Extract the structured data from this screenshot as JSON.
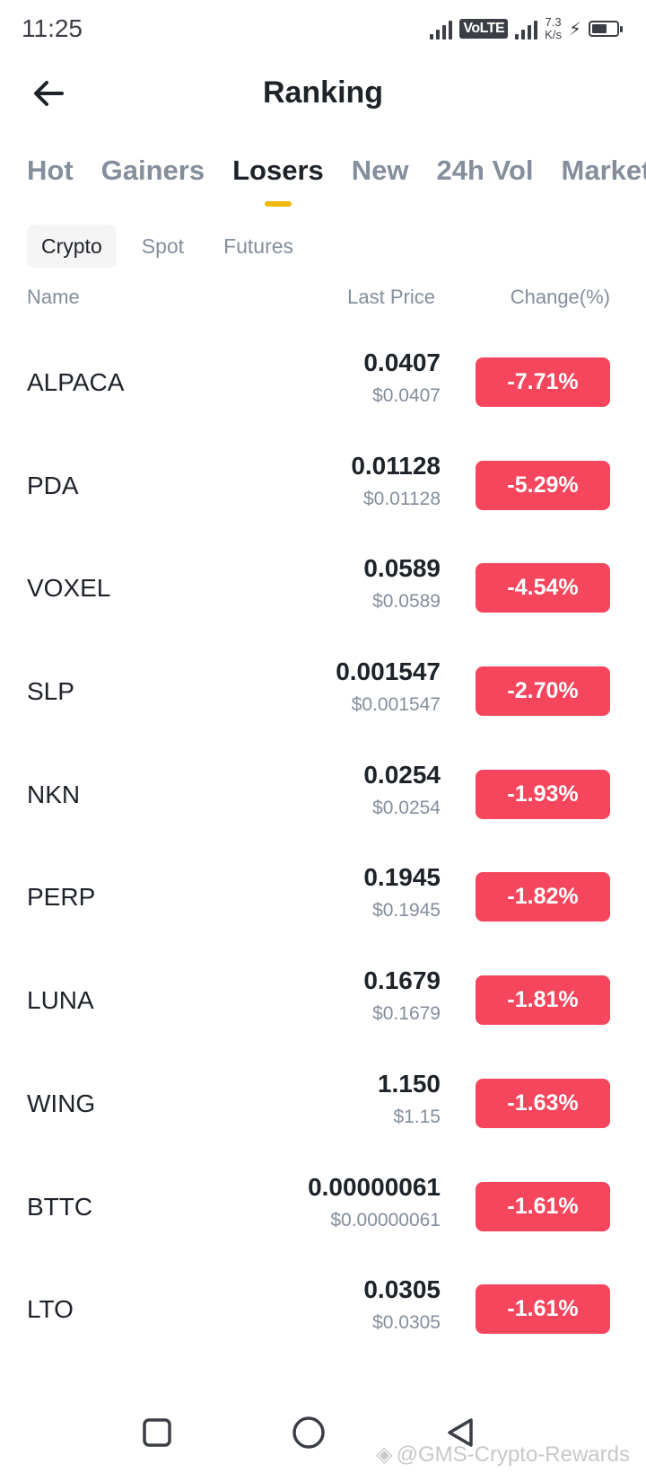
{
  "status_bar": {
    "time": "11:25",
    "volte": "VoLTE",
    "net_speed_value": "7.3",
    "net_speed_unit": "K/s"
  },
  "header": {
    "title": "Ranking",
    "back_icon": "arrow-left-icon"
  },
  "tabs": [
    {
      "label": "Hot",
      "active": false
    },
    {
      "label": "Gainers",
      "active": false
    },
    {
      "label": "Losers",
      "active": true
    },
    {
      "label": "New",
      "active": false
    },
    {
      "label": "24h Vol",
      "active": false
    },
    {
      "label": "Market Cap",
      "active": false
    }
  ],
  "subtabs": [
    {
      "label": "Crypto",
      "active": true
    },
    {
      "label": "Spot",
      "active": false
    },
    {
      "label": "Futures",
      "active": false
    }
  ],
  "columns": {
    "name": "Name",
    "last_price": "Last Price",
    "change": "Change(%)"
  },
  "rows": [
    {
      "name": "ALPACA",
      "price": "0.0407",
      "usd": "$0.0407",
      "change": "-7.71%"
    },
    {
      "name": "PDA",
      "price": "0.01128",
      "usd": "$0.01128",
      "change": "-5.29%"
    },
    {
      "name": "VOXEL",
      "price": "0.0589",
      "usd": "$0.0589",
      "change": "-4.54%"
    },
    {
      "name": "SLP",
      "price": "0.001547",
      "usd": "$0.001547",
      "change": "-2.70%"
    },
    {
      "name": "NKN",
      "price": "0.0254",
      "usd": "$0.0254",
      "change": "-1.93%"
    },
    {
      "name": "PERP",
      "price": "0.1945",
      "usd": "$0.1945",
      "change": "-1.82%"
    },
    {
      "name": "LUNA",
      "price": "0.1679",
      "usd": "$0.1679",
      "change": "-1.81%"
    },
    {
      "name": "WING",
      "price": "1.150",
      "usd": "$1.15",
      "change": "-1.63%"
    },
    {
      "name": "BTTC",
      "price": "0.00000061",
      "usd": "$0.00000061",
      "change": "-1.61%"
    },
    {
      "name": "LTO",
      "price": "0.0305",
      "usd": "$0.0305",
      "change": "-1.61%"
    }
  ],
  "colors": {
    "accent": "#f0b90b",
    "negative": "#f6465d",
    "text_primary": "#1e2329",
    "text_secondary": "#848e9c"
  },
  "watermark": "@GMS-Crypto-Rewards"
}
